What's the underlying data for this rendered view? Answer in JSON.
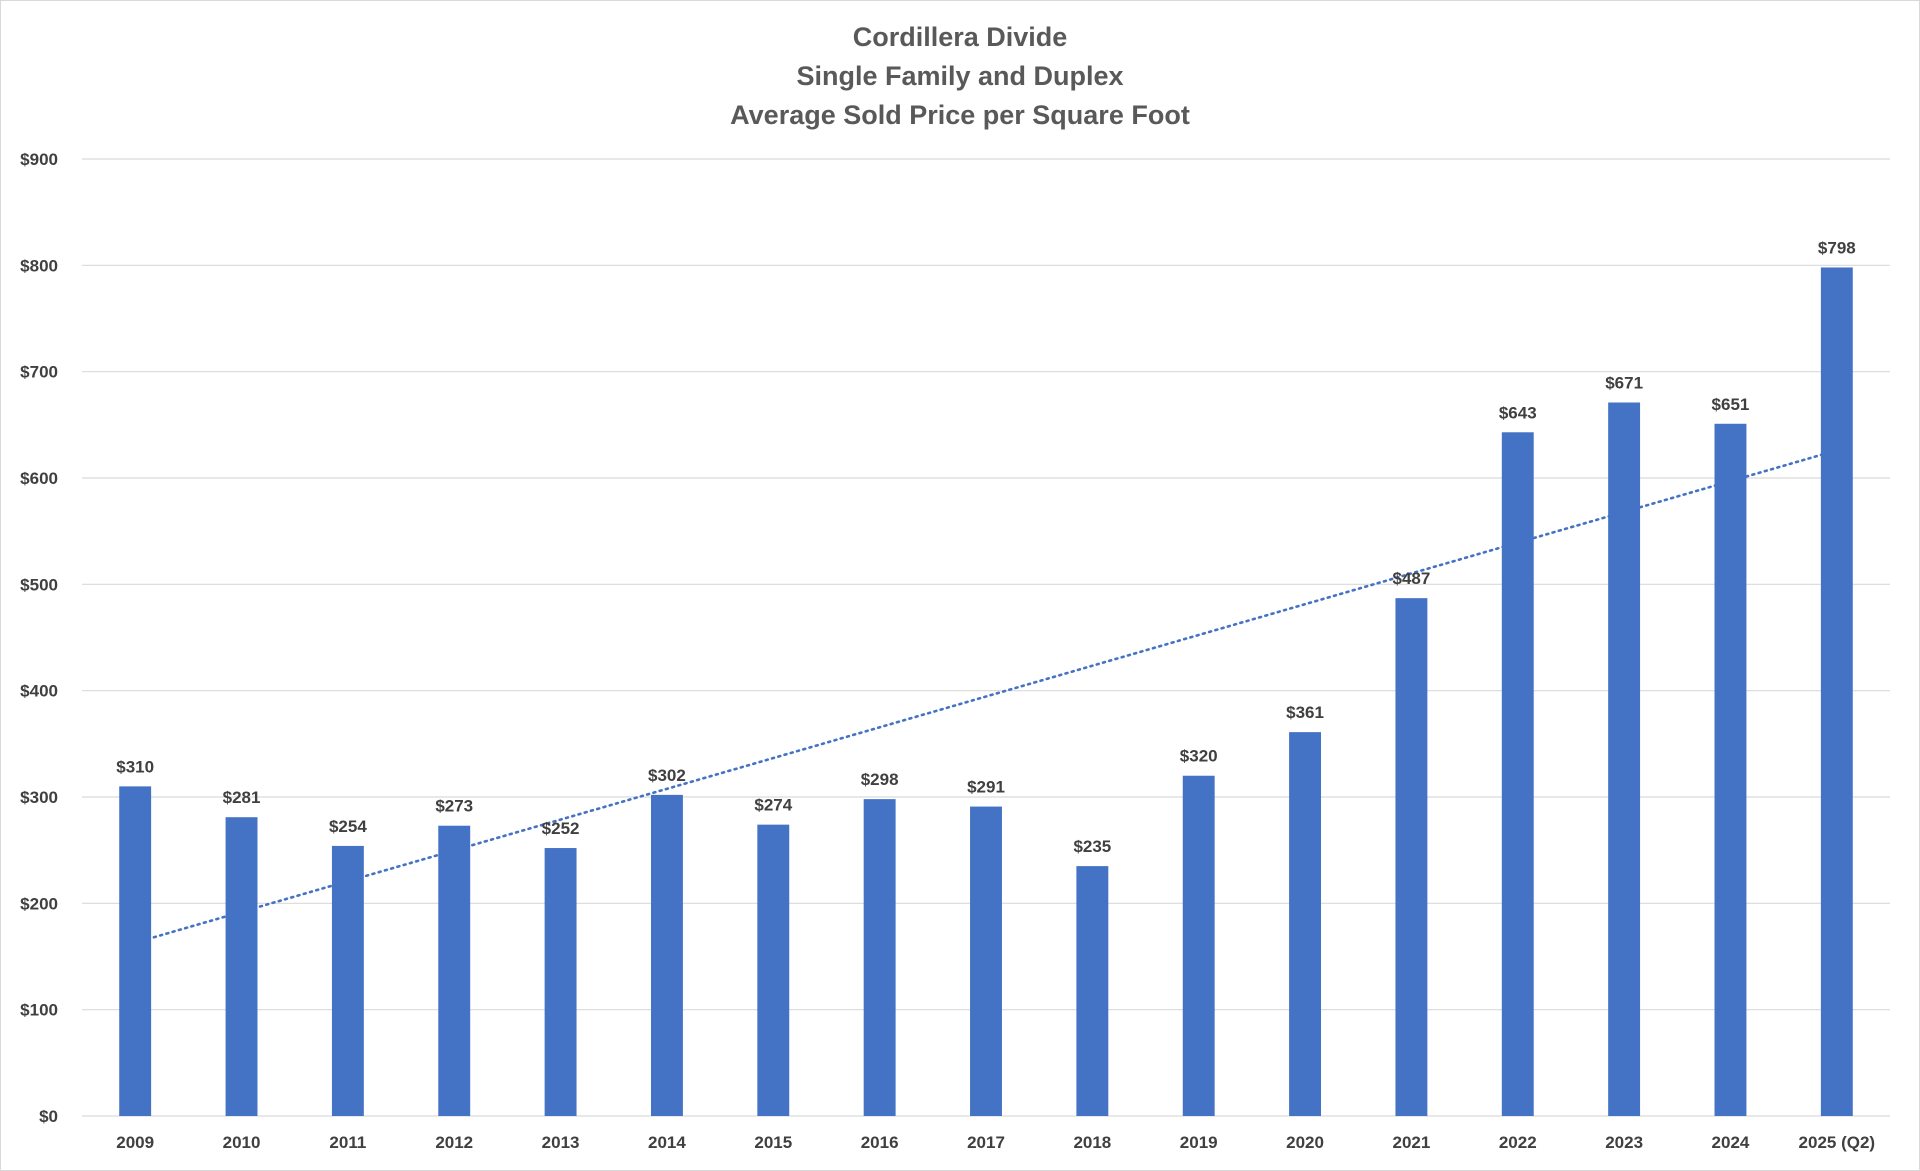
{
  "chart_data": {
    "type": "bar",
    "title": [
      "Cordillera Divide",
      "Single Family and Duplex",
      "Average Sold Price per Square Foot"
    ],
    "xlabel": "",
    "ylabel": "",
    "categories": [
      "2009",
      "2010",
      "2011",
      "2012",
      "2013",
      "2014",
      "2015",
      "2016",
      "2017",
      "2018",
      "2019",
      "2020",
      "2021",
      "2022",
      "2023",
      "2024",
      "2025 (Q2)"
    ],
    "values": [
      310,
      281,
      254,
      273,
      252,
      302,
      274,
      298,
      291,
      235,
      320,
      361,
      487,
      643,
      671,
      651,
      798
    ],
    "data_labels": [
      "$310",
      "$281",
      "$254",
      "$273",
      "$252",
      "$302",
      "$274",
      "$298",
      "$291",
      "$235",
      "$320",
      "$361",
      "$487",
      "$643",
      "$671",
      "$651",
      "$798"
    ],
    "ylim": [
      0,
      900
    ],
    "yticks": [
      0,
      100,
      200,
      300,
      400,
      500,
      600,
      700,
      800,
      900
    ],
    "ytick_labels": [
      "$0",
      "$100",
      "$200",
      "$300",
      "$400",
      "$500",
      "$600",
      "$700",
      "$800",
      "$900"
    ],
    "trendline": {
      "type": "linear",
      "style": "dotted",
      "start": 163,
      "end": 626
    },
    "grid": true,
    "legend": "none",
    "colors": {
      "bar": "#4472c4",
      "trendline": "#4472c4",
      "grid": "#d9d9d9",
      "text": "#404040",
      "title": "#595959"
    }
  }
}
